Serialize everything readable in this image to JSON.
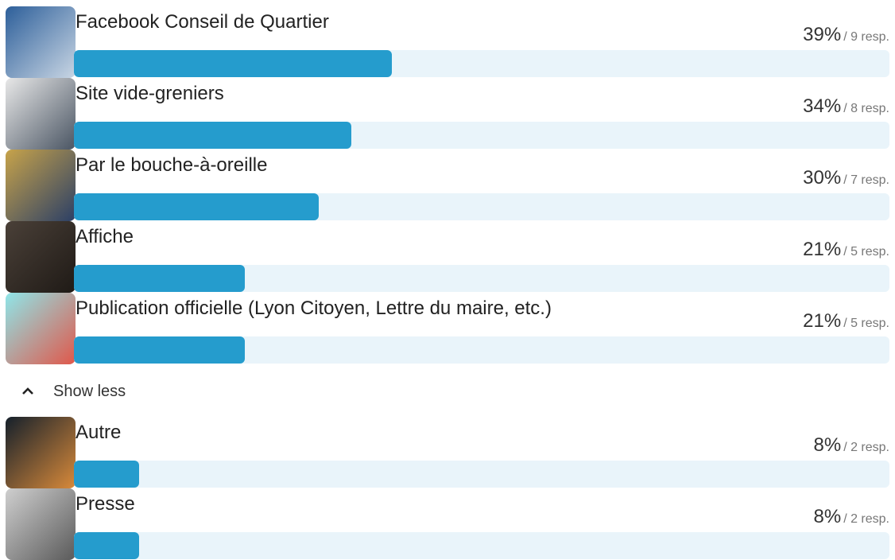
{
  "results_visible": [
    {
      "label": "Facebook Conseil de Quartier",
      "percent": 39,
      "percent_label": "39%",
      "responses_label": "/ 9 resp."
    },
    {
      "label": "Site vide-greniers",
      "percent": 34,
      "percent_label": "34%",
      "responses_label": "/ 8 resp."
    },
    {
      "label": "Par le bouche-à-oreille",
      "percent": 30,
      "percent_label": "30%",
      "responses_label": "/ 7 resp."
    },
    {
      "label": "Affiche",
      "percent": 21,
      "percent_label": "21%",
      "responses_label": "/ 5 resp."
    },
    {
      "label": "Publication officielle (Lyon Citoyen, Lettre du maire, etc.)",
      "percent": 21,
      "percent_label": "21%",
      "responses_label": "/ 5 resp."
    }
  ],
  "toggle_label": "Show less",
  "results_more": [
    {
      "label": "Autre",
      "percent": 8,
      "percent_label": "8%",
      "responses_label": "/ 2 resp."
    },
    {
      "label": "Presse",
      "percent": 8,
      "percent_label": "8%",
      "responses_label": "/ 2 resp."
    }
  ]
}
